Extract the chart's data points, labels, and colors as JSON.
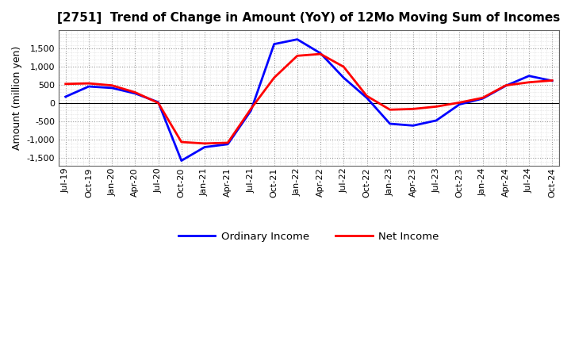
{
  "title": "[2751]  Trend of Change in Amount (YoY) of 12Mo Moving Sum of Incomes",
  "ylabel": "Amount (million yen)",
  "x_labels": [
    "Jul-19",
    "Oct-19",
    "Jan-20",
    "Apr-20",
    "Jul-20",
    "Oct-20",
    "Jan-21",
    "Apr-21",
    "Jul-21",
    "Oct-21",
    "Jan-22",
    "Apr-22",
    "Jul-22",
    "Oct-22",
    "Jan-23",
    "Apr-23",
    "Jul-23",
    "Oct-23",
    "Jan-24",
    "Apr-24",
    "Jul-24",
    "Oct-24"
  ],
  "ordinary_income": [
    180,
    460,
    420,
    270,
    30,
    -1570,
    -1200,
    -1120,
    -200,
    1620,
    1750,
    1370,
    700,
    150,
    -560,
    -610,
    -470,
    -30,
    130,
    480,
    750,
    615
  ],
  "net_income": [
    530,
    545,
    490,
    300,
    10,
    -1060,
    -1100,
    -1080,
    -150,
    700,
    1300,
    1350,
    1000,
    200,
    -175,
    -155,
    -90,
    20,
    150,
    490,
    575,
    625
  ],
  "ordinary_color": "#0000FF",
  "net_color": "#FF0000",
  "ylim": [
    -1700,
    2000
  ],
  "yticks": [
    -1500,
    -1000,
    -500,
    0,
    500,
    1000,
    1500
  ],
  "bg_color": "#FFFFFF",
  "plot_bg_color": "#FFFFFF",
  "fine_grid_color": "#CCCCCC",
  "major_grid_color": "#999999",
  "legend_ordinary": "Ordinary Income",
  "legend_net": "Net Income",
  "line_width": 2.0,
  "title_fontsize": 11,
  "ylabel_fontsize": 9,
  "tick_fontsize": 8
}
